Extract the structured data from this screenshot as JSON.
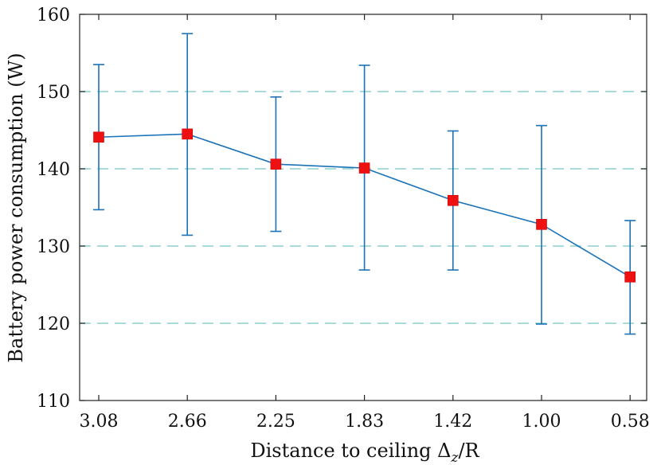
{
  "chart_data": {
    "type": "line",
    "title": "",
    "xlabel": "Distance to ceiling Δ",
    "xlabel_sub": "z",
    "xlabel_suffix": "/R",
    "ylabel": "Battery power consumption (W)",
    "categories": [
      "3.08",
      "2.66",
      "2.25",
      "1.83",
      "1.42",
      "1.00",
      "0.58"
    ],
    "series": [
      {
        "name": "Battery power consumption",
        "values": [
          144.1,
          144.5,
          140.6,
          140.1,
          135.9,
          132.8,
          126.0
        ],
        "error_low": [
          134.7,
          131.4,
          131.9,
          126.9,
          126.9,
          119.9,
          118.6
        ],
        "error_high": [
          153.5,
          157.5,
          149.3,
          153.4,
          144.9,
          145.6,
          133.3
        ]
      }
    ],
    "ylim": [
      110,
      160
    ],
    "yticks": [
      110,
      120,
      130,
      140,
      150,
      160
    ],
    "grid_y": [
      120,
      130,
      140,
      150
    ],
    "grid": true,
    "colors": {
      "line": "#1a72b8",
      "marker": "#ee1111",
      "grid": "#8ecfcf",
      "axis": "#222222"
    }
  }
}
